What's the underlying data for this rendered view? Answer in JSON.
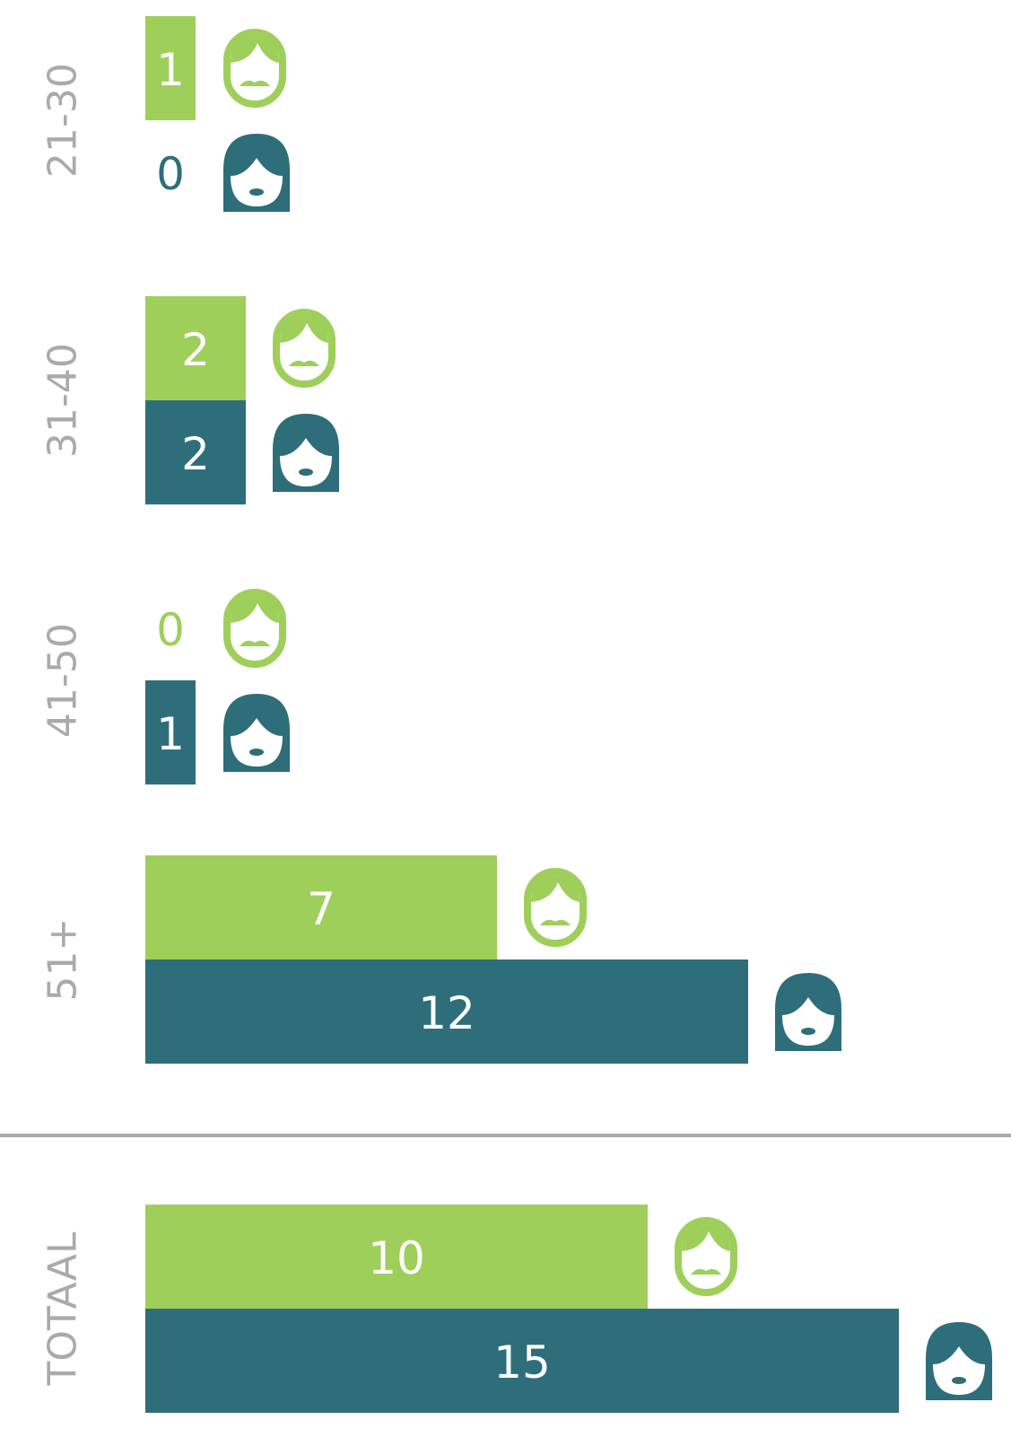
{
  "chart_data": {
    "type": "bar",
    "orientation": "horizontal",
    "categories": [
      "21-30",
      "31-40",
      "41-50",
      "51+",
      "TOTAAL"
    ],
    "series": [
      {
        "color": "#9ecf5b",
        "values": [
          1,
          2,
          0,
          7,
          10
        ]
      },
      {
        "color": "#2e6e7a",
        "values": [
          0,
          2,
          1,
          12,
          15
        ]
      }
    ]
  }
}
